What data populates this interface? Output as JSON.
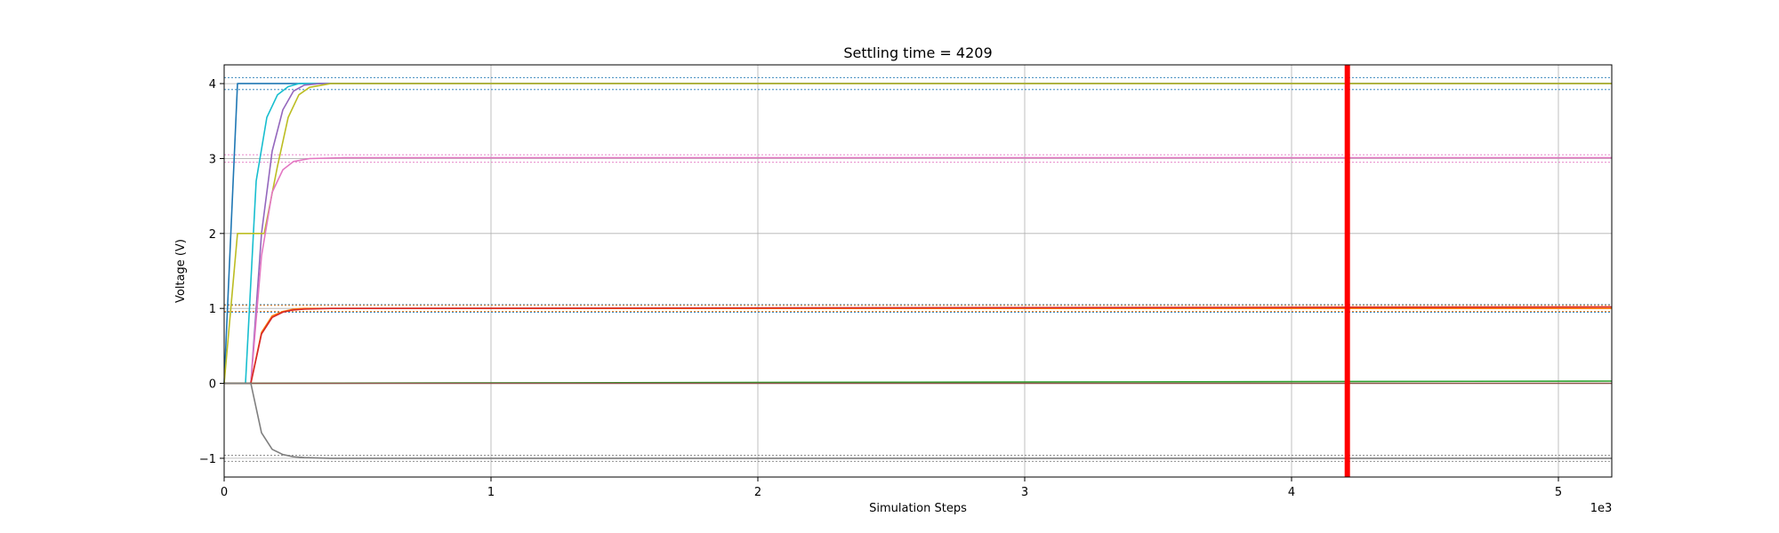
{
  "chart_data": {
    "type": "line",
    "title": "Settling time = 4209",
    "xlabel": "Simulation Steps",
    "ylabel": "Voltage (V)",
    "x_scale_label": "1e3",
    "xlim": [
      0,
      5.2
    ],
    "ylim": [
      -1.25,
      4.25
    ],
    "x_ticks": [
      0,
      1,
      2,
      3,
      4,
      5
    ],
    "x_tick_labels": [
      "0",
      "1",
      "2",
      "3",
      "4",
      "5"
    ],
    "y_ticks": [
      -1,
      0,
      1,
      2,
      3,
      4
    ],
    "y_tick_labels": [
      "−1",
      "0",
      "1",
      "2",
      "3",
      "4"
    ],
    "grid": true,
    "settling_marker": {
      "x": 4.209,
      "color": "#ff0000"
    },
    "tolerance_bands": [
      {
        "color": "#1f77b4",
        "levels": [
          3.92,
          4.08
        ]
      },
      {
        "color": "#e377c2",
        "levels": [
          2.95,
          3.05
        ]
      },
      {
        "color": "#1f77b4",
        "levels": [
          0.95,
          1.05
        ]
      },
      {
        "color": "#ff7f0e",
        "levels": [
          0.96,
          1.04
        ]
      },
      {
        "color": "#7f7f7f",
        "levels": [
          -1.04,
          -0.96
        ]
      }
    ],
    "series": [
      {
        "color": "#1f77b4",
        "x": [
          0,
          0.05,
          5.2
        ],
        "y": [
          0,
          4,
          4
        ]
      },
      {
        "color": "#17becf",
        "x": [
          0,
          0.08,
          0.12,
          0.16,
          0.2,
          0.24,
          0.28,
          0.35,
          5.2
        ],
        "y": [
          0,
          0,
          2.7,
          3.55,
          3.85,
          3.96,
          4.0,
          4.0,
          4.0
        ]
      },
      {
        "color": "#9467bd",
        "x": [
          0,
          0.1,
          0.14,
          0.18,
          0.22,
          0.26,
          0.3,
          0.36,
          5.2
        ],
        "y": [
          0,
          0,
          2.0,
          3.1,
          3.65,
          3.9,
          3.98,
          4.0,
          4.0
        ]
      },
      {
        "color": "#bcbd22",
        "x": [
          0,
          0.05,
          0.15,
          0.2,
          0.24,
          0.28,
          0.32,
          0.4,
          5.2
        ],
        "y": [
          0,
          2,
          2,
          2.9,
          3.55,
          3.85,
          3.95,
          4.0,
          4.0
        ]
      },
      {
        "color": "#e377c2",
        "x": [
          0,
          0.1,
          0.14,
          0.18,
          0.22,
          0.26,
          0.32,
          0.45,
          5.2
        ],
        "y": [
          0,
          0,
          1.7,
          2.55,
          2.85,
          2.96,
          3.0,
          3.01,
          3.01
        ]
      },
      {
        "color": "#ff7f0e",
        "x": [
          0,
          0.1,
          0.14,
          0.18,
          0.22,
          0.26,
          0.3,
          0.4,
          5.2
        ],
        "y": [
          0,
          0,
          0.68,
          0.9,
          0.96,
          0.99,
          1.0,
          1.0,
          1.0
        ]
      },
      {
        "color": "#d62728",
        "x": [
          0,
          0.1,
          0.14,
          0.18,
          0.22,
          0.26,
          0.3,
          0.4,
          5.2
        ],
        "y": [
          0,
          0,
          0.66,
          0.88,
          0.95,
          0.98,
          0.99,
          1.0,
          1.02
        ]
      },
      {
        "color": "#2ca02c",
        "x": [
          0,
          5.2
        ],
        "y": [
          0,
          0.03
        ]
      },
      {
        "color": "#8c564b",
        "x": [
          0,
          5.2
        ],
        "y": [
          0,
          0
        ]
      },
      {
        "color": "#7f7f7f",
        "x": [
          0,
          0.1,
          0.14,
          0.18,
          0.22,
          0.26,
          0.3,
          0.4,
          5.2
        ],
        "y": [
          0,
          0,
          -0.66,
          -0.88,
          -0.95,
          -0.98,
          -0.99,
          -1.0,
          -1.0
        ]
      }
    ]
  }
}
